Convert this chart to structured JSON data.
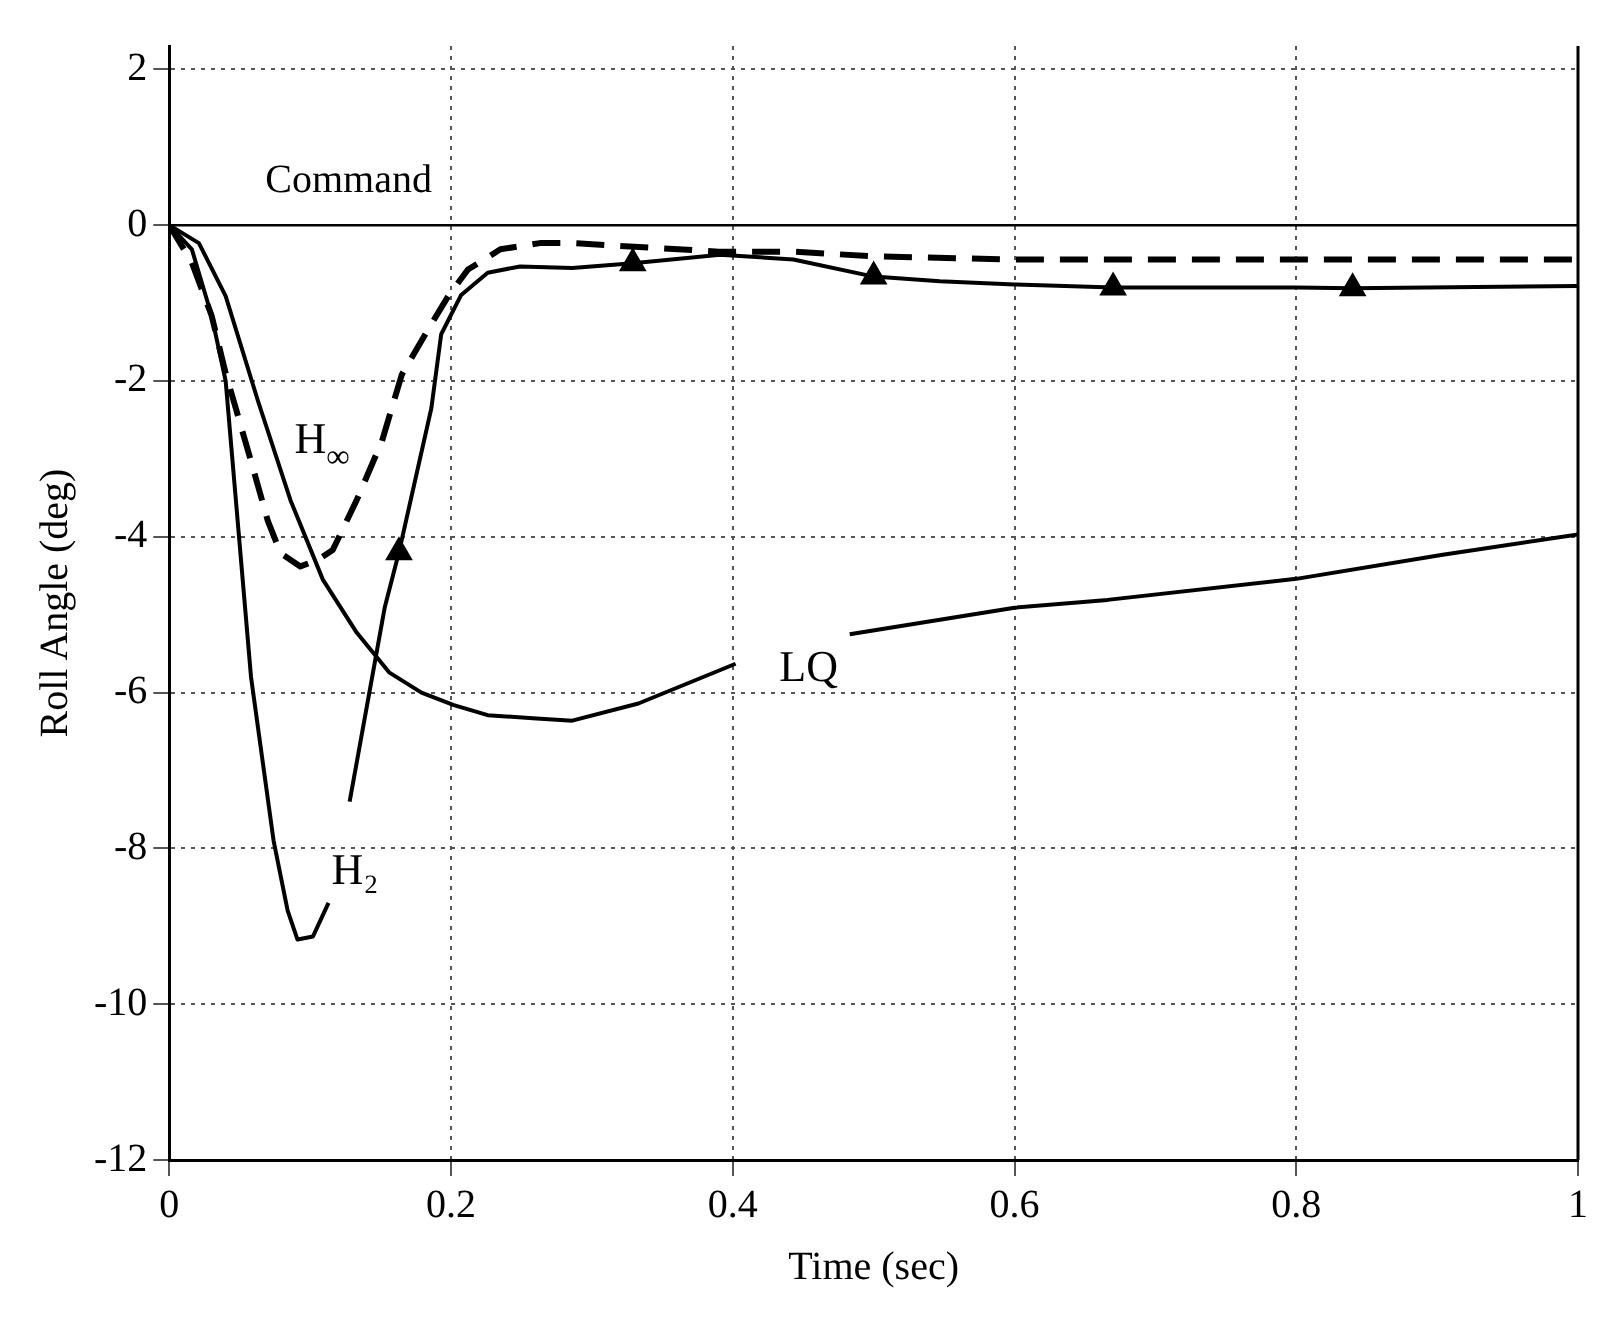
{
  "chart_data": {
    "type": "line",
    "xlabel": "Time (sec)",
    "ylabel": "Roll Angle (deg)",
    "xlim": [
      0,
      1
    ],
    "xticks": [
      0,
      0.2,
      0.4,
      0.6,
      0.8,
      1
    ],
    "ylim": [
      -12,
      2.3
    ],
    "yticks": [
      -12,
      -10,
      -8,
      -6,
      -4,
      -2,
      0,
      2
    ],
    "grid": true,
    "series": [
      {
        "name": "H₂",
        "line_style": "solid",
        "marker": "none",
        "color": "#000000",
        "x": [
          0,
          0.016,
          0.03,
          0.04,
          0.058,
          0.074,
          0.084,
          0.091,
          0.102,
          0.113,
          0.12,
          0.128,
          0.153,
          0.163,
          0.186,
          0.193,
          0.207,
          0.226,
          0.249,
          0.286,
          0.329,
          0.391,
          0.443,
          0.5,
          0.547,
          0.6,
          0.67,
          0.8,
          0.84,
          1.0
        ],
        "values": [
          0,
          -0.31,
          -1.16,
          -2.0,
          -5.8,
          -7.9,
          -8.8,
          -9.17,
          -9.13,
          -8.7,
          null,
          -7.4,
          -4.9,
          -4.2,
          -2.35,
          -1.4,
          -0.9,
          -0.61,
          -0.53,
          -0.55,
          -0.49,
          -0.38,
          -0.44,
          -0.66,
          -0.72,
          -0.76,
          -0.8,
          -0.8,
          -0.81,
          -0.78
        ]
      },
      {
        "name": "H$_{∞}$",
        "line_style": "dashed",
        "marker": "none",
        "color": "#000000",
        "x": [
          0,
          0.016,
          0.03,
          0.04,
          0.058,
          0.07,
          0.079,
          0.093,
          0.105,
          0.116,
          0.133,
          0.151,
          0.165,
          0.184,
          0.198,
          0.212,
          0.235,
          0.263,
          0.286,
          0.39,
          0.443,
          0.5,
          0.6,
          1.0
        ],
        "values": [
          0,
          -0.48,
          -1.16,
          -1.9,
          -3.03,
          -3.8,
          -4.21,
          -4.38,
          -4.3,
          -4.17,
          -3.53,
          -2.77,
          -1.92,
          -1.33,
          -0.91,
          -0.57,
          -0.31,
          -0.23,
          -0.23,
          -0.34,
          -0.34,
          -0.4,
          -0.44,
          -0.44
        ]
      },
      {
        "name": "LQ",
        "line_style": "solid",
        "marker": "none",
        "color": "#000000",
        "x": [
          0,
          0.021,
          0.04,
          0.063,
          0.086,
          0.109,
          0.133,
          0.156,
          0.179,
          0.202,
          0.226,
          0.258,
          0.286,
          0.333,
          0.402,
          0.44,
          0.483,
          0.6,
          0.666,
          0.8,
          0.904,
          1.0
        ],
        "values": [
          0,
          -0.23,
          -0.91,
          -2.26,
          -3.53,
          -4.55,
          -5.23,
          -5.74,
          -6.0,
          -6.16,
          -6.29,
          -6.33,
          -6.36,
          -6.14,
          -5.63,
          null,
          -5.25,
          -4.91,
          -4.81,
          -4.54,
          -4.23,
          -3.97
        ]
      },
      {
        "type": "scatter",
        "marker": "triangle",
        "color": "#000000",
        "x": [
          0.163,
          0.329,
          0.5,
          0.67,
          0.84
        ],
        "values": [
          -4.2,
          -0.49,
          -0.66,
          -0.8,
          -0.81
        ]
      }
    ],
    "ref_lines": [
      {
        "axis": "y",
        "value": 0,
        "label": "Command",
        "color": "#000000",
        "line_style": "solid"
      }
    ]
  }
}
